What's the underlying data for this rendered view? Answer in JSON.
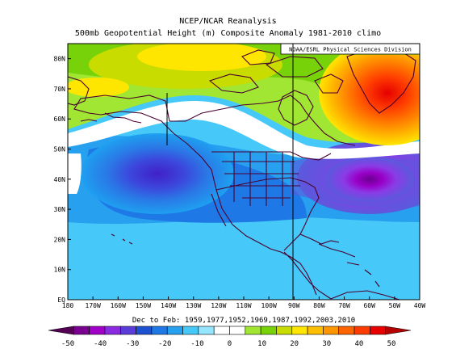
{
  "title": "NCEP/NCAR Reanalysis",
  "subtitle": "500mb Geopotential Height (m) Composite Anomaly 1981-2010 climo",
  "credit": "NOAA/ESRL Physical Sciences Division",
  "caption": "Dec to Feb: 1959,1977,1952,1969,1987,1992,2003,2010",
  "lat_ticks": [
    "EQ",
    "10N",
    "20N",
    "30N",
    "40N",
    "50N",
    "60N",
    "70N",
    "80N"
  ],
  "lon_ticks": [
    "180",
    "170W",
    "160W",
    "150W",
    "140W",
    "130W",
    "120W",
    "110W",
    "100W",
    "90W",
    "80W",
    "70W",
    "60W",
    "50W",
    "40W"
  ],
  "colorbar": {
    "labels": [
      "-50",
      "-40",
      "-30",
      "-20",
      "-10",
      "0",
      "10",
      "20",
      "30",
      "40",
      "50"
    ],
    "colors": [
      "#550055",
      "#7a0090",
      "#a000c8",
      "#8a2be2",
      "#5a3cd8",
      "#1e50d2",
      "#1e78e6",
      "#28a0f0",
      "#46c8f8",
      "#96e6ff",
      "#ffffff",
      "#ffffff",
      "#a0e632",
      "#78d20a",
      "#c8dc00",
      "#ffe600",
      "#ffbe00",
      "#ff9600",
      "#ff6400",
      "#ff3c00",
      "#e60000",
      "#b40000"
    ]
  },
  "chart_data": {
    "type": "heatmap",
    "title": "NCEP/NCAR Reanalysis",
    "subtitle": "500mb Geopotential Height (m) Composite Anomaly 1981-2010 climo",
    "xlim": [
      "180",
      "40W"
    ],
    "ylim": [
      "EQ",
      "85N"
    ],
    "color_range": [
      -50,
      50
    ],
    "features": [
      {
        "name": "negative anomaly centre, North Pacific",
        "lat": 43,
        "lon": "145W",
        "value": -25
      },
      {
        "name": "negative anomaly centre, western Atlantic",
        "lat": 40,
        "lon": "50W",
        "value": -40
      },
      {
        "name": "positive anomaly centre, Davis Strait / Greenland",
        "lat": 70,
        "lon": "50W",
        "value": 40
      },
      {
        "name": "positive anomaly band, Alaska and Arctic",
        "lat": 72,
        "lon": "130W",
        "value": 15
      }
    ]
  }
}
